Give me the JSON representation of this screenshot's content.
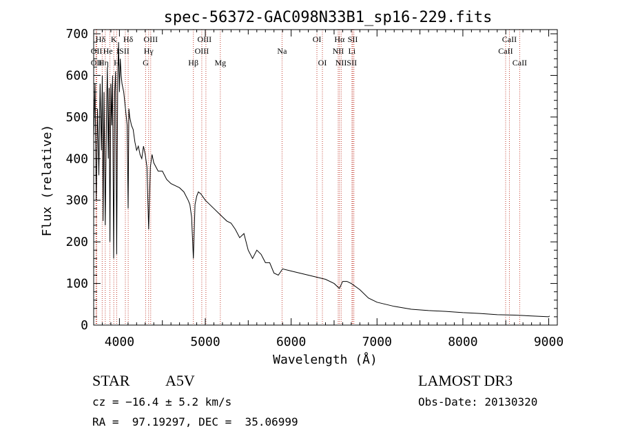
{
  "chart_data": {
    "type": "line",
    "title": "spec-56372-GAC098N33B1_sp16-229.fits",
    "xlabel": "Wavelength (Å)",
    "ylabel": "Flux (relative)",
    "xlim": [
      3700,
      9100
    ],
    "ylim": [
      0,
      710
    ],
    "xticks": [
      4000,
      5000,
      6000,
      7000,
      8000,
      9000
    ],
    "yticks": [
      0,
      100,
      200,
      300,
      400,
      500,
      600,
      700
    ],
    "grid": false,
    "series": [
      {
        "name": "flux",
        "x": [
          3700,
          3715,
          3730,
          3745,
          3760,
          3775,
          3790,
          3800,
          3810,
          3820,
          3835,
          3850,
          3860,
          3870,
          3880,
          3889,
          3900,
          3910,
          3920,
          3933,
          3945,
          3955,
          3968,
          3980,
          3990,
          4000,
          4010,
          4020,
          4030,
          4050,
          4070,
          4090,
          4101,
          4110,
          4120,
          4140,
          4160,
          4180,
          4200,
          4220,
          4240,
          4260,
          4280,
          4300,
          4320,
          4340,
          4360,
          4380,
          4400,
          4450,
          4500,
          4550,
          4600,
          4650,
          4700,
          4750,
          4800,
          4820,
          4840,
          4861,
          4880,
          4900,
          4920,
          4950,
          5000,
          5050,
          5100,
          5150,
          5200,
          5250,
          5300,
          5350,
          5400,
          5450,
          5500,
          5550,
          5600,
          5650,
          5700,
          5750,
          5800,
          5850,
          5900,
          6000,
          6100,
          6200,
          6300,
          6400,
          6500,
          6562,
          6600,
          6650,
          6700,
          6800,
          6900,
          7000,
          7100,
          7200,
          7400,
          7600,
          7800,
          8000,
          8200,
          8400,
          8600,
          8800,
          9000,
          9010
        ],
        "y": [
          450,
          580,
          300,
          520,
          360,
          580,
          420,
          600,
          250,
          560,
          240,
          520,
          620,
          400,
          570,
          200,
          580,
          480,
          600,
          160,
          560,
          610,
          170,
          590,
          680,
          560,
          640,
          600,
          580,
          560,
          520,
          480,
          280,
          520,
          500,
          480,
          470,
          440,
          420,
          430,
          410,
          400,
          430,
          410,
          380,
          230,
          380,
          410,
          390,
          370,
          370,
          350,
          340,
          335,
          330,
          320,
          300,
          290,
          260,
          160,
          290,
          310,
          320,
          315,
          300,
          290,
          280,
          270,
          260,
          250,
          245,
          230,
          210,
          220,
          180,
          160,
          180,
          170,
          150,
          150,
          125,
          120,
          135,
          130,
          125,
          120,
          115,
          110,
          100,
          88,
          105,
          105,
          100,
          85,
          65,
          55,
          50,
          45,
          38,
          35,
          33,
          30,
          28,
          25,
          24,
          22,
          20,
          22
        ]
      }
    ],
    "lines": [
      {
        "name": "Hε",
        "wavelength": 3727
      },
      {
        "name": "OII",
        "wavelength": 3729
      },
      {
        "name": "OII",
        "wavelength": 3736
      },
      {
        "name": "Hη",
        "wavelength": 3799
      },
      {
        "name": "Hθ",
        "wavelength": 3835
      },
      {
        "name": "HeI",
        "wavelength": 3889
      },
      {
        "name": "K",
        "wavelength": 3934
      },
      {
        "name": "H",
        "wavelength": 3968
      },
      {
        "name": "SII",
        "wavelength": 4069
      },
      {
        "name": "Hδ",
        "wavelength": 4102
      },
      {
        "name": "G",
        "wavelength": 4305
      },
      {
        "name": "Hγ",
        "wavelength": 4340
      },
      {
        "name": "OIII",
        "wavelength": 4364
      },
      {
        "name": "Hβ",
        "wavelength": 4861
      },
      {
        "name": "OIII",
        "wavelength": 4959
      },
      {
        "name": "OIII",
        "wavelength": 5007
      },
      {
        "name": "Mg",
        "wavelength": 5175
      },
      {
        "name": "Na",
        "wavelength": 5894
      },
      {
        "name": "OI",
        "wavelength": 6300
      },
      {
        "name": "OI",
        "wavelength": 6364
      },
      {
        "name": "NII",
        "wavelength": 6548
      },
      {
        "name": "Hα",
        "wavelength": 6563
      },
      {
        "name": "NII",
        "wavelength": 6583
      },
      {
        "name": "Li",
        "wavelength": 6708
      },
      {
        "name": "SII",
        "wavelength": 6717
      },
      {
        "name": "SII",
        "wavelength": 6731
      },
      {
        "name": "CaII",
        "wavelength": 8498
      },
      {
        "name": "CaII",
        "wavelength": 8542
      },
      {
        "name": "CaII",
        "wavelength": 8662
      }
    ],
    "line_labels": [
      {
        "text": "Hδ",
        "wavelength": 3780,
        "row": 0
      },
      {
        "text": "K",
        "wavelength": 3934,
        "row": 0
      },
      {
        "text": "Hδ",
        "wavelength": 4102,
        "row": 0
      },
      {
        "text": "OIII",
        "wavelength": 4364,
        "row": 0
      },
      {
        "text": "OIII",
        "wavelength": 4990,
        "row": 0
      },
      {
        "text": "OI",
        "wavelength": 6300,
        "row": 0
      },
      {
        "text": "Hα",
        "wavelength": 6563,
        "row": 0
      },
      {
        "text": "SII",
        "wavelength": 6717,
        "row": 0
      },
      {
        "text": "CaII",
        "wavelength": 8542,
        "row": 0
      },
      {
        "text": "OII",
        "wavelength": 3733,
        "row": 1
      },
      {
        "text": "He",
        "wavelength": 3865,
        "row": 1
      },
      {
        "text": "ISII",
        "wavelength": 4040,
        "row": 1
      },
      {
        "text": "Hγ",
        "wavelength": 4340,
        "row": 1
      },
      {
        "text": "OIII",
        "wavelength": 4959,
        "row": 1
      },
      {
        "text": "Na",
        "wavelength": 5894,
        "row": 1
      },
      {
        "text": "NII",
        "wavelength": 6548,
        "row": 1
      },
      {
        "text": "Li",
        "wavelength": 6708,
        "row": 1
      },
      {
        "text": "CaII",
        "wavelength": 8498,
        "row": 1
      },
      {
        "text": "OII",
        "wavelength": 3733,
        "row": 2
      },
      {
        "text": "Hη",
        "wavelength": 3815,
        "row": 2
      },
      {
        "text": "H",
        "wavelength": 3968,
        "row": 2
      },
      {
        "text": "G",
        "wavelength": 4305,
        "row": 2
      },
      {
        "text": "Hβ",
        "wavelength": 4861,
        "row": 2
      },
      {
        "text": "Mg",
        "wavelength": 5175,
        "row": 2
      },
      {
        "text": "OI",
        "wavelength": 6364,
        "row": 2
      },
      {
        "text": "NIISII",
        "wavelength": 6640,
        "row": 2
      },
      {
        "text": "CaII",
        "wavelength": 8662,
        "row": 2
      }
    ],
    "colors": {
      "spectrum": "#000000",
      "lines": "#c0392b",
      "axes": "#000000"
    }
  },
  "info": {
    "class_label": "STAR",
    "subclass": "A5V",
    "redshift": "cz = −16.4 ± 5.2 km/s",
    "coords": "RA =  97.19297, DEC =  35.06999",
    "survey": "LAMOST DR3",
    "obs_date": "Obs-Date: 20130320"
  }
}
